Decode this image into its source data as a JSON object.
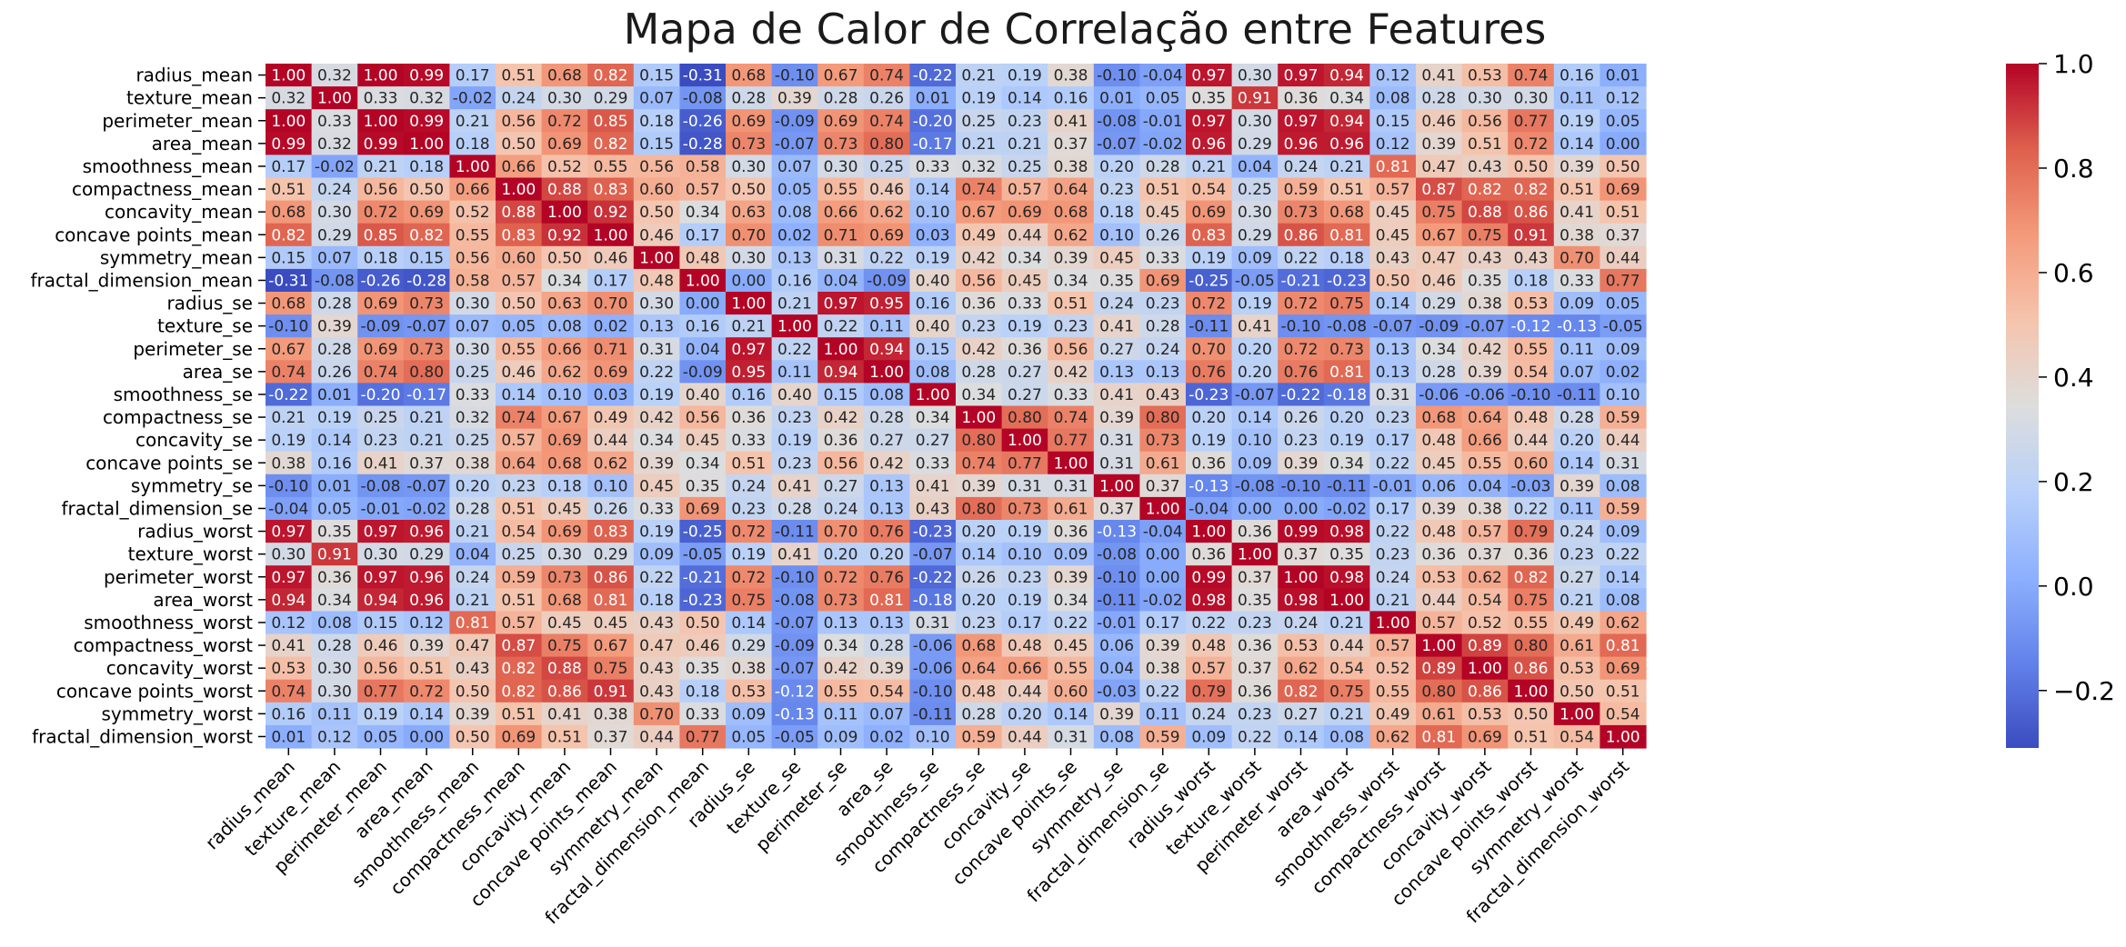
{
  "chart_data": {
    "type": "heatmap",
    "title": "Mapa de Calor de Correlação entre Features",
    "xlabel": "",
    "ylabel": "",
    "labels": [
      "radius_mean",
      "texture_mean",
      "perimeter_mean",
      "area_mean",
      "smoothness_mean",
      "compactness_mean",
      "concavity_mean",
      "concave points_mean",
      "symmetry_mean",
      "fractal_dimension_mean",
      "radius_se",
      "texture_se",
      "perimeter_se",
      "area_se",
      "smoothness_se",
      "compactness_se",
      "concavity_se",
      "concave points_se",
      "symmetry_se",
      "fractal_dimension_se",
      "radius_worst",
      "texture_worst",
      "perimeter_worst",
      "area_worst",
      "smoothness_worst",
      "compactness_worst",
      "concavity_worst",
      "concave points_worst",
      "symmetry_worst",
      "fractal_dimension_worst"
    ],
    "matrix": [
      [
        1.0,
        0.32,
        1.0,
        0.99,
        0.17,
        0.51,
        0.68,
        0.82,
        0.15,
        -0.31,
        0.68,
        -0.1,
        0.67,
        0.74,
        -0.22,
        0.21,
        0.19,
        0.38,
        -0.1,
        -0.04,
        0.97,
        0.3,
        0.97,
        0.94,
        0.12,
        0.41,
        0.53,
        0.74,
        0.16,
        0.01
      ],
      [
        0.32,
        1.0,
        0.33,
        0.32,
        -0.02,
        0.24,
        0.3,
        0.29,
        0.07,
        -0.08,
        0.28,
        0.39,
        0.28,
        0.26,
        0.01,
        0.19,
        0.14,
        0.16,
        0.01,
        0.05,
        0.35,
        0.91,
        0.36,
        0.34,
        0.08,
        0.28,
        0.3,
        0.3,
        0.11,
        0.12
      ],
      [
        1.0,
        0.33,
        1.0,
        0.99,
        0.21,
        0.56,
        0.72,
        0.85,
        0.18,
        -0.26,
        0.69,
        -0.09,
        0.69,
        0.74,
        -0.2,
        0.25,
        0.23,
        0.41,
        -0.08,
        -0.01,
        0.97,
        0.3,
        0.97,
        0.94,
        0.15,
        0.46,
        0.56,
        0.77,
        0.19,
        0.05
      ],
      [
        0.99,
        0.32,
        0.99,
        1.0,
        0.18,
        0.5,
        0.69,
        0.82,
        0.15,
        -0.28,
        0.73,
        -0.07,
        0.73,
        0.8,
        -0.17,
        0.21,
        0.21,
        0.37,
        -0.07,
        -0.02,
        0.96,
        0.29,
        0.96,
        0.96,
        0.12,
        0.39,
        0.51,
        0.72,
        0.14,
        0.0
      ],
      [
        0.17,
        -0.02,
        0.21,
        0.18,
        1.0,
        0.66,
        0.52,
        0.55,
        0.56,
        0.58,
        0.3,
        0.07,
        0.3,
        0.25,
        0.33,
        0.32,
        0.25,
        0.38,
        0.2,
        0.28,
        0.21,
        0.04,
        0.24,
        0.21,
        0.81,
        0.47,
        0.43,
        0.5,
        0.39,
        0.5
      ],
      [
        0.51,
        0.24,
        0.56,
        0.5,
        0.66,
        1.0,
        0.88,
        0.83,
        0.6,
        0.57,
        0.5,
        0.05,
        0.55,
        0.46,
        0.14,
        0.74,
        0.57,
        0.64,
        0.23,
        0.51,
        0.54,
        0.25,
        0.59,
        0.51,
        0.57,
        0.87,
        0.82,
        0.82,
        0.51,
        0.69
      ],
      [
        0.68,
        0.3,
        0.72,
        0.69,
        0.52,
        0.88,
        1.0,
        0.92,
        0.5,
        0.34,
        0.63,
        0.08,
        0.66,
        0.62,
        0.1,
        0.67,
        0.69,
        0.68,
        0.18,
        0.45,
        0.69,
        0.3,
        0.73,
        0.68,
        0.45,
        0.75,
        0.88,
        0.86,
        0.41,
        0.51
      ],
      [
        0.82,
        0.29,
        0.85,
        0.82,
        0.55,
        0.83,
        0.92,
        1.0,
        0.46,
        0.17,
        0.7,
        0.02,
        0.71,
        0.69,
        0.03,
        0.49,
        0.44,
        0.62,
        0.1,
        0.26,
        0.83,
        0.29,
        0.86,
        0.81,
        0.45,
        0.67,
        0.75,
        0.91,
        0.38,
        0.37
      ],
      [
        0.15,
        0.07,
        0.18,
        0.15,
        0.56,
        0.6,
        0.5,
        0.46,
        1.0,
        0.48,
        0.3,
        0.13,
        0.31,
        0.22,
        0.19,
        0.42,
        0.34,
        0.39,
        0.45,
        0.33,
        0.19,
        0.09,
        0.22,
        0.18,
        0.43,
        0.47,
        0.43,
        0.43,
        0.7,
        0.44
      ],
      [
        -0.31,
        -0.08,
        -0.26,
        -0.28,
        0.58,
        0.57,
        0.34,
        0.17,
        0.48,
        1.0,
        0.0,
        0.16,
        0.04,
        -0.09,
        0.4,
        0.56,
        0.45,
        0.34,
        0.35,
        0.69,
        -0.25,
        -0.05,
        -0.21,
        -0.23,
        0.5,
        0.46,
        0.35,
        0.18,
        0.33,
        0.77
      ],
      [
        0.68,
        0.28,
        0.69,
        0.73,
        0.3,
        0.5,
        0.63,
        0.7,
        0.3,
        0.0,
        1.0,
        0.21,
        0.97,
        0.95,
        0.16,
        0.36,
        0.33,
        0.51,
        0.24,
        0.23,
        0.72,
        0.19,
        0.72,
        0.75,
        0.14,
        0.29,
        0.38,
        0.53,
        0.09,
        0.05
      ],
      [
        -0.1,
        0.39,
        -0.09,
        -0.07,
        0.07,
        0.05,
        0.08,
        0.02,
        0.13,
        0.16,
        0.21,
        1.0,
        0.22,
        0.11,
        0.4,
        0.23,
        0.19,
        0.23,
        0.41,
        0.28,
        -0.11,
        0.41,
        -0.1,
        -0.08,
        -0.07,
        -0.09,
        -0.07,
        -0.12,
        -0.13,
        -0.05
      ],
      [
        0.67,
        0.28,
        0.69,
        0.73,
        0.3,
        0.55,
        0.66,
        0.71,
        0.31,
        0.04,
        0.97,
        0.22,
        1.0,
        0.94,
        0.15,
        0.42,
        0.36,
        0.56,
        0.27,
        0.24,
        0.7,
        0.2,
        0.72,
        0.73,
        0.13,
        0.34,
        0.42,
        0.55,
        0.11,
        0.09
      ],
      [
        0.74,
        0.26,
        0.74,
        0.8,
        0.25,
        0.46,
        0.62,
        0.69,
        0.22,
        -0.09,
        0.95,
        0.11,
        0.94,
        1.0,
        0.08,
        0.28,
        0.27,
        0.42,
        0.13,
        0.13,
        0.76,
        0.2,
        0.76,
        0.81,
        0.13,
        0.28,
        0.39,
        0.54,
        0.07,
        0.02
      ],
      [
        -0.22,
        0.01,
        -0.2,
        -0.17,
        0.33,
        0.14,
        0.1,
        0.03,
        0.19,
        0.4,
        0.16,
        0.4,
        0.15,
        0.08,
        1.0,
        0.34,
        0.27,
        0.33,
        0.41,
        0.43,
        -0.23,
        -0.07,
        -0.22,
        -0.18,
        0.31,
        -0.06,
        -0.06,
        -0.1,
        -0.11,
        0.1
      ],
      [
        0.21,
        0.19,
        0.25,
        0.21,
        0.32,
        0.74,
        0.67,
        0.49,
        0.42,
        0.56,
        0.36,
        0.23,
        0.42,
        0.28,
        0.34,
        1.0,
        0.8,
        0.74,
        0.39,
        0.8,
        0.2,
        0.14,
        0.26,
        0.2,
        0.23,
        0.68,
        0.64,
        0.48,
        0.28,
        0.59
      ],
      [
        0.19,
        0.14,
        0.23,
        0.21,
        0.25,
        0.57,
        0.69,
        0.44,
        0.34,
        0.45,
        0.33,
        0.19,
        0.36,
        0.27,
        0.27,
        0.8,
        1.0,
        0.77,
        0.31,
        0.73,
        0.19,
        0.1,
        0.23,
        0.19,
        0.17,
        0.48,
        0.66,
        0.44,
        0.2,
        0.44
      ],
      [
        0.38,
        0.16,
        0.41,
        0.37,
        0.38,
        0.64,
        0.68,
        0.62,
        0.39,
        0.34,
        0.51,
        0.23,
        0.56,
        0.42,
        0.33,
        0.74,
        0.77,
        1.0,
        0.31,
        0.61,
        0.36,
        0.09,
        0.39,
        0.34,
        0.22,
        0.45,
        0.55,
        0.6,
        0.14,
        0.31
      ],
      [
        -0.1,
        0.01,
        -0.08,
        -0.07,
        0.2,
        0.23,
        0.18,
        0.1,
        0.45,
        0.35,
        0.24,
        0.41,
        0.27,
        0.13,
        0.41,
        0.39,
        0.31,
        0.31,
        1.0,
        0.37,
        -0.13,
        -0.08,
        -0.1,
        -0.11,
        -0.01,
        0.06,
        0.04,
        -0.03,
        0.39,
        0.08
      ],
      [
        -0.04,
        0.05,
        -0.01,
        -0.02,
        0.28,
        0.51,
        0.45,
        0.26,
        0.33,
        0.69,
        0.23,
        0.28,
        0.24,
        0.13,
        0.43,
        0.8,
        0.73,
        0.61,
        0.37,
        1.0,
        -0.04,
        -0.0,
        -0.0,
        -0.02,
        0.17,
        0.39,
        0.38,
        0.22,
        0.11,
        0.59
      ],
      [
        0.97,
        0.35,
        0.97,
        0.96,
        0.21,
        0.54,
        0.69,
        0.83,
        0.19,
        -0.25,
        0.72,
        -0.11,
        0.7,
        0.76,
        -0.23,
        0.2,
        0.19,
        0.36,
        -0.13,
        -0.04,
        1.0,
        0.36,
        0.99,
        0.98,
        0.22,
        0.48,
        0.57,
        0.79,
        0.24,
        0.09
      ],
      [
        0.3,
        0.91,
        0.3,
        0.29,
        0.04,
        0.25,
        0.3,
        0.29,
        0.09,
        -0.05,
        0.19,
        0.41,
        0.2,
        0.2,
        -0.07,
        0.14,
        0.1,
        0.09,
        -0.08,
        -0.0,
        0.36,
        1.0,
        0.37,
        0.35,
        0.23,
        0.36,
        0.37,
        0.36,
        0.23,
        0.22
      ],
      [
        0.97,
        0.36,
        0.97,
        0.96,
        0.24,
        0.59,
        0.73,
        0.86,
        0.22,
        -0.21,
        0.72,
        -0.1,
        0.72,
        0.76,
        -0.22,
        0.26,
        0.23,
        0.39,
        -0.1,
        -0.0,
        0.99,
        0.37,
        1.0,
        0.98,
        0.24,
        0.53,
        0.62,
        0.82,
        0.27,
        0.14
      ],
      [
        0.94,
        0.34,
        0.94,
        0.96,
        0.21,
        0.51,
        0.68,
        0.81,
        0.18,
        -0.23,
        0.75,
        -0.08,
        0.73,
        0.81,
        -0.18,
        0.2,
        0.19,
        0.34,
        -0.11,
        -0.02,
        0.98,
        0.35,
        0.98,
        1.0,
        0.21,
        0.44,
        0.54,
        0.75,
        0.21,
        0.08
      ],
      [
        0.12,
        0.08,
        0.15,
        0.12,
        0.81,
        0.57,
        0.45,
        0.45,
        0.43,
        0.5,
        0.14,
        -0.07,
        0.13,
        0.13,
        0.31,
        0.23,
        0.17,
        0.22,
        -0.01,
        0.17,
        0.22,
        0.23,
        0.24,
        0.21,
        1.0,
        0.57,
        0.52,
        0.55,
        0.49,
        0.62
      ],
      [
        0.41,
        0.28,
        0.46,
        0.39,
        0.47,
        0.87,
        0.75,
        0.67,
        0.47,
        0.46,
        0.29,
        -0.09,
        0.34,
        0.28,
        -0.06,
        0.68,
        0.48,
        0.45,
        0.06,
        0.39,
        0.48,
        0.36,
        0.53,
        0.44,
        0.57,
        1.0,
        0.89,
        0.8,
        0.61,
        0.81
      ],
      [
        0.53,
        0.3,
        0.56,
        0.51,
        0.43,
        0.82,
        0.88,
        0.75,
        0.43,
        0.35,
        0.38,
        -0.07,
        0.42,
        0.39,
        -0.06,
        0.64,
        0.66,
        0.55,
        0.04,
        0.38,
        0.57,
        0.37,
        0.62,
        0.54,
        0.52,
        0.89,
        1.0,
        0.86,
        0.53,
        0.69
      ],
      [
        0.74,
        0.3,
        0.77,
        0.72,
        0.5,
        0.82,
        0.86,
        0.91,
        0.43,
        0.18,
        0.53,
        -0.12,
        0.55,
        0.54,
        -0.1,
        0.48,
        0.44,
        0.6,
        -0.03,
        0.22,
        0.79,
        0.36,
        0.82,
        0.75,
        0.55,
        0.8,
        0.86,
        1.0,
        0.5,
        0.51
      ],
      [
        0.16,
        0.11,
        0.19,
        0.14,
        0.39,
        0.51,
        0.41,
        0.38,
        0.7,
        0.33,
        0.09,
        -0.13,
        0.11,
        0.07,
        -0.11,
        0.28,
        0.2,
        0.14,
        0.39,
        0.11,
        0.24,
        0.23,
        0.27,
        0.21,
        0.49,
        0.61,
        0.53,
        0.5,
        1.0,
        0.54
      ],
      [
        0.01,
        0.12,
        0.05,
        0.0,
        0.5,
        0.69,
        0.51,
        0.37,
        0.44,
        0.77,
        0.05,
        -0.05,
        0.09,
        0.02,
        0.1,
        0.59,
        0.44,
        0.31,
        0.08,
        0.59,
        0.09,
        0.22,
        0.14,
        0.08,
        0.62,
        0.81,
        0.69,
        0.51,
        0.54,
        1.0
      ]
    ],
    "value_format": "0.00",
    "colormap": "coolwarm",
    "vmin": -0.31,
    "vmax": 1.0,
    "colorbar": {
      "ticks": [
        1.0,
        0.8,
        0.6,
        0.4,
        0.2,
        0.0,
        -0.2
      ],
      "tick_labels": [
        "1.0",
        "0.8",
        "0.6",
        "0.4",
        "0.2",
        "0.0",
        "−0.2"
      ]
    },
    "grid": false,
    "legend": "colorbar-right"
  }
}
